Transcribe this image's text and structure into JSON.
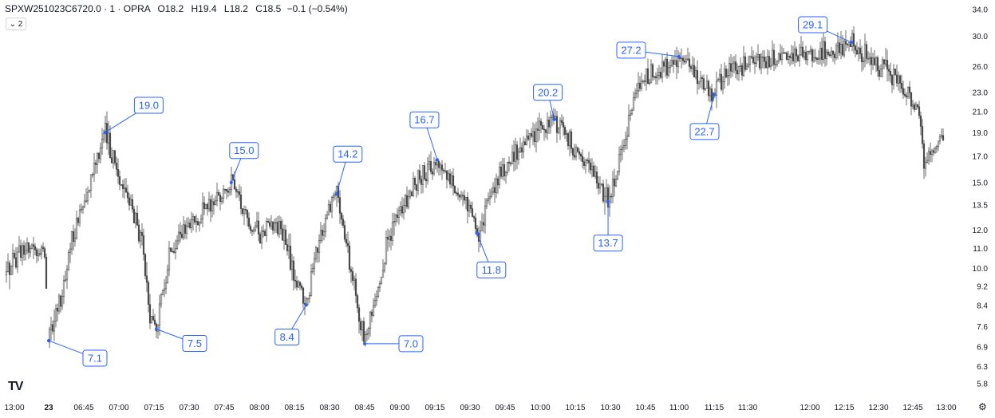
{
  "header": {
    "symbol": "SPXW251023C6720.0 · 1 · OPRA",
    "o_label": "O",
    "o_value": "18.2",
    "h_label": "H",
    "h_value": "19.4",
    "l_label": "L",
    "l_value": "18.2",
    "c_label": "C",
    "c_value": "18.5",
    "change": "−0.1 (−0.54%)"
  },
  "indicator_toggle": {
    "label": "⌄ 2"
  },
  "logo_text": "TV",
  "settings_icon": "gear-icon",
  "chart_data": {
    "type": "candlestick",
    "y_scale": "log",
    "ylim": [
      5.6,
      35.0
    ],
    "y_ticks": [
      5.8,
      6.3,
      6.9,
      7.6,
      8.4,
      9.2,
      10.0,
      11.0,
      12.0,
      13.5,
      15.0,
      17.0,
      19.0,
      21.0,
      23.0,
      26.0,
      30.0,
      34.0
    ],
    "y_tick_labels": [
      "5.8",
      "6.3",
      "6.9",
      "7.6",
      "8.4",
      "9.2",
      "10.0",
      "11.0",
      "12.0",
      "13.5",
      "15.0",
      "17.0",
      "19.0",
      "21.0",
      "23.0",
      "26.0",
      "30.0",
      "34.0"
    ],
    "x_tick_labels": [
      "13:00",
      "23",
      "06:45",
      "07:00",
      "07:15",
      "07:30",
      "07:45",
      "08:00",
      "08:15",
      "08:30",
      "08:45",
      "09:00",
      "09:15",
      "09:30",
      "09:45",
      "10:00",
      "10:15",
      "10:30",
      "10:45",
      "11:00",
      "11:15",
      "11:30",
      "12:00",
      "12:15",
      "12:30",
      "12:45",
      "13:00"
    ],
    "x_tick_bold": [
      "23"
    ],
    "path": [
      {
        "t": "13:00",
        "v": 9.8
      },
      {
        "t": "13:10",
        "v": 10.6
      },
      {
        "t": "13:20",
        "v": 11.1
      },
      {
        "t": "13:30",
        "v": 10.9
      },
      {
        "t": "13:38",
        "v": 10.7
      },
      {
        "t": "06:30",
        "v": 7.1
      },
      {
        "t": "06:35",
        "v": 8.6
      },
      {
        "t": "06:40",
        "v": 11.5
      },
      {
        "t": "06:45",
        "v": 13.8
      },
      {
        "t": "06:50",
        "v": 16.8
      },
      {
        "t": "06:54",
        "v": 19.0
      },
      {
        "t": "07:00",
        "v": 15.5
      },
      {
        "t": "07:05",
        "v": 13.5
      },
      {
        "t": "07:10",
        "v": 11.0
      },
      {
        "t": "07:13",
        "v": 8.0
      },
      {
        "t": "07:16",
        "v": 7.5
      },
      {
        "t": "07:22",
        "v": 11.0
      },
      {
        "t": "07:30",
        "v": 12.2
      },
      {
        "t": "07:37",
        "v": 13.2
      },
      {
        "t": "07:45",
        "v": 14.4
      },
      {
        "t": "07:48",
        "v": 15.0
      },
      {
        "t": "07:55",
        "v": 12.5
      },
      {
        "t": "08:00",
        "v": 11.8
      },
      {
        "t": "08:05",
        "v": 12.6
      },
      {
        "t": "08:10",
        "v": 11.8
      },
      {
        "t": "08:15",
        "v": 9.6
      },
      {
        "t": "08:20",
        "v": 8.4
      },
      {
        "t": "08:25",
        "v": 11.0
      },
      {
        "t": "08:30",
        "v": 13.5
      },
      {
        "t": "08:33",
        "v": 14.2
      },
      {
        "t": "08:38",
        "v": 10.5
      },
      {
        "t": "08:45",
        "v": 7.0
      },
      {
        "t": "08:50",
        "v": 8.8
      },
      {
        "t": "08:55",
        "v": 11.5
      },
      {
        "t": "09:00",
        "v": 13.0
      },
      {
        "t": "09:05",
        "v": 14.5
      },
      {
        "t": "09:12",
        "v": 16.0
      },
      {
        "t": "09:16",
        "v": 16.7
      },
      {
        "t": "09:22",
        "v": 15.0
      },
      {
        "t": "09:28",
        "v": 13.8
      },
      {
        "t": "09:33",
        "v": 11.8
      },
      {
        "t": "09:40",
        "v": 14.5
      },
      {
        "t": "09:45",
        "v": 16.0
      },
      {
        "t": "09:52",
        "v": 17.8
      },
      {
        "t": "10:00",
        "v": 19.2
      },
      {
        "t": "10:06",
        "v": 20.2
      },
      {
        "t": "10:12",
        "v": 18.5
      },
      {
        "t": "10:18",
        "v": 16.5
      },
      {
        "t": "10:24",
        "v": 15.2
      },
      {
        "t": "10:29",
        "v": 13.7
      },
      {
        "t": "10:35",
        "v": 17.5
      },
      {
        "t": "10:40",
        "v": 22.0
      },
      {
        "t": "10:45",
        "v": 25.0
      },
      {
        "t": "10:52",
        "v": 25.5
      },
      {
        "t": "11:00",
        "v": 27.2
      },
      {
        "t": "11:05",
        "v": 25.5
      },
      {
        "t": "11:10",
        "v": 24.5
      },
      {
        "t": "11:15",
        "v": 22.7
      },
      {
        "t": "11:20",
        "v": 25.2
      },
      {
        "t": "11:30",
        "v": 26.5
      },
      {
        "t": "11:45",
        "v": 27.0
      },
      {
        "t": "12:00",
        "v": 27.5
      },
      {
        "t": "12:10",
        "v": 28.0
      },
      {
        "t": "12:18",
        "v": 29.1
      },
      {
        "t": "12:25",
        "v": 27.0
      },
      {
        "t": "12:35",
        "v": 25.0
      },
      {
        "t": "12:42",
        "v": 23.0
      },
      {
        "t": "12:48",
        "v": 21.0
      },
      {
        "t": "12:50",
        "v": 16.5
      },
      {
        "t": "12:55",
        "v": 17.8
      },
      {
        "t": "13:00",
        "v": 18.5
      }
    ],
    "annotations": [
      {
        "label": "7.1",
        "t": "06:30",
        "v": 7.1
      },
      {
        "label": "19.0",
        "t": "06:54",
        "v": 19.0
      },
      {
        "label": "7.5",
        "t": "07:16",
        "v": 7.5
      },
      {
        "label": "15.0",
        "t": "07:48",
        "v": 15.0
      },
      {
        "label": "8.4",
        "t": "08:20",
        "v": 8.4
      },
      {
        "label": "14.2",
        "t": "08:33",
        "v": 14.2
      },
      {
        "label": "7.0",
        "t": "08:45",
        "v": 7.0
      },
      {
        "label": "16.7",
        "t": "09:16",
        "v": 16.7
      },
      {
        "label": "11.8",
        "t": "09:33",
        "v": 11.8
      },
      {
        "label": "20.2",
        "t": "10:06",
        "v": 20.2
      },
      {
        "label": "13.7",
        "t": "10:29",
        "v": 13.7
      },
      {
        "label": "27.2",
        "t": "11:00",
        "v": 27.2
      },
      {
        "label": "22.7",
        "t": "11:15",
        "v": 22.7
      },
      {
        "label": "29.1",
        "t": "12:18",
        "v": 29.1
      }
    ],
    "accent_color": "#2962ff",
    "candle_color": "#4a4a4a"
  }
}
